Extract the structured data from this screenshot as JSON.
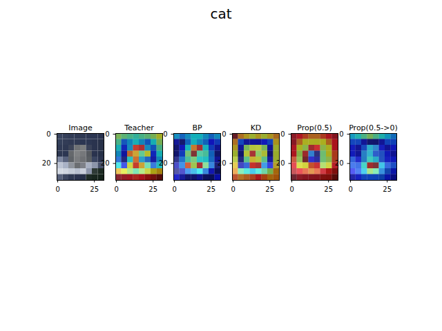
{
  "title": "cat",
  "chart_data": [
    {
      "type": "image",
      "title": "Image",
      "xlim": [
        -0.5,
        31.5
      ],
      "ylim": [
        31.5,
        -0.5
      ],
      "xticks": [
        0,
        25
      ],
      "yticks": [
        0,
        20
      ],
      "cells": [
        [
          "#3a4560",
          "#36405a",
          "#323c56",
          "#2f3953",
          "#2f3953",
          "#2c3652",
          "#2c3652",
          "#2a334e"
        ],
        [
          "#34405a",
          "#323c56",
          "#2f3953",
          "#2f3953",
          "#2c3652",
          "#2c3652",
          "#2a334e",
          "#283149"
        ],
        [
          "#303a55",
          "#2e3852",
          "#3c4458",
          "#6f7275",
          "#7a7c7e",
          "#3a4258",
          "#2a334e",
          "#283149"
        ],
        [
          "#2e3852",
          "#2c3652",
          "#65686c",
          "#808284",
          "#76787b",
          "#55595f",
          "#2a334e",
          "#263048"
        ],
        [
          "#7c86a0",
          "#59637e",
          "#5f6368",
          "#7a7c7f",
          "#6e7074",
          "#5a5e63",
          "#3a4560",
          "#2a334e"
        ],
        [
          "#bcc4d4",
          "#a9b2c6",
          "#8e939c",
          "#6b6e72",
          "#7d8088",
          "#a8b0c2",
          "#8c95aa",
          "#46506a"
        ],
        [
          "#d4dae4",
          "#cfd5e0",
          "#c4cbd8",
          "#b8c0d0",
          "#c9cfdb",
          "#8c95aa",
          "#2e3a36",
          "#1c2a22"
        ],
        [
          "#56607a",
          "#3c4660",
          "#2e3852",
          "#2a334e",
          "#263048",
          "#1e2c26",
          "#18261e",
          "#14221a"
        ]
      ]
    },
    {
      "type": "heatmap",
      "title": "Teacher",
      "xlim": [
        -0.5,
        31.5
      ],
      "ylim": [
        31.5,
        -0.5
      ],
      "xticks": [
        0,
        25
      ],
      "yticks": [
        0,
        20
      ],
      "cells": [
        [
          0.65,
          0.62,
          0.6,
          0.58,
          0.6,
          0.62,
          0.65,
          0.7
        ],
        [
          0.6,
          0.45,
          0.5,
          0.55,
          0.5,
          0.45,
          0.55,
          0.65
        ],
        [
          0.55,
          0.4,
          0.5,
          0.85,
          0.9,
          0.5,
          0.45,
          0.6
        ],
        [
          0.5,
          0.35,
          0.8,
          0.75,
          0.6,
          0.7,
          0.4,
          0.55
        ],
        [
          0.45,
          0.3,
          0.55,
          0.8,
          0.5,
          0.45,
          0.35,
          0.5
        ],
        [
          0.55,
          0.4,
          0.7,
          0.85,
          0.75,
          0.6,
          0.45,
          0.55
        ],
        [
          0.75,
          0.7,
          0.65,
          0.6,
          0.65,
          0.7,
          0.72,
          0.75
        ],
        [
          0.92,
          0.9,
          0.88,
          0.85,
          0.87,
          0.9,
          0.92,
          0.95
        ]
      ]
    },
    {
      "type": "heatmap",
      "title": "BP",
      "xlim": [
        -0.5,
        31.5
      ],
      "ylim": [
        31.5,
        -0.5
      ],
      "xticks": [
        0,
        25
      ],
      "yticks": [
        0,
        20
      ],
      "cells": [
        [
          0.35,
          0.3,
          0.35,
          0.4,
          0.4,
          0.35,
          0.3,
          0.35
        ],
        [
          0.15,
          0.1,
          0.3,
          0.4,
          0.35,
          0.3,
          0.2,
          0.25
        ],
        [
          0.1,
          0.2,
          0.4,
          0.7,
          0.85,
          0.4,
          0.25,
          0.15
        ],
        [
          0.1,
          0.25,
          0.5,
          0.9,
          0.45,
          0.45,
          0.3,
          0.1
        ],
        [
          0.1,
          0.3,
          0.45,
          0.5,
          0.4,
          0.4,
          0.3,
          0.15
        ],
        [
          0.15,
          0.3,
          0.75,
          0.55,
          0.85,
          0.5,
          0.3,
          0.1
        ],
        [
          0.1,
          0.15,
          0.3,
          0.35,
          0.4,
          0.3,
          0.2,
          0.1
        ],
        [
          0.2,
          0.15,
          0.1,
          0.1,
          0.15,
          0.1,
          0.1,
          0.2
        ]
      ]
    },
    {
      "type": "heatmap",
      "title": "KD",
      "xlim": [
        -0.5,
        31.5
      ],
      "ylim": [
        31.5,
        -0.5
      ],
      "xticks": [
        0,
        25
      ],
      "yticks": [
        0,
        20
      ],
      "cells": [
        [
          0.9,
          0.7,
          0.65,
          0.6,
          0.65,
          0.6,
          0.65,
          0.7
        ],
        [
          0.7,
          0.3,
          0.2,
          0.2,
          0.2,
          0.25,
          0.3,
          0.65
        ],
        [
          0.65,
          0.2,
          0.55,
          0.6,
          0.6,
          0.55,
          0.2,
          0.6
        ],
        [
          0.6,
          0.15,
          0.6,
          0.85,
          0.55,
          0.6,
          0.15,
          0.6
        ],
        [
          0.6,
          0.15,
          0.5,
          0.65,
          0.6,
          0.5,
          0.2,
          0.6
        ],
        [
          0.65,
          0.2,
          0.3,
          0.8,
          0.85,
          0.35,
          0.25,
          0.65
        ],
        [
          0.7,
          0.5,
          0.45,
          0.4,
          0.45,
          0.5,
          0.55,
          0.7
        ],
        [
          0.75,
          0.7,
          0.72,
          0.75,
          0.8,
          0.75,
          0.7,
          0.72
        ]
      ]
    },
    {
      "type": "heatmap",
      "title": "Prop(0.5)",
      "xlim": [
        -0.5,
        31.5
      ],
      "ylim": [
        31.5,
        -0.5
      ],
      "xticks": [
        0,
        25
      ],
      "yticks": [
        0,
        20
      ],
      "cells": [
        [
          0.85,
          0.8,
          0.75,
          0.7,
          0.7,
          0.75,
          0.8,
          0.85
        ],
        [
          0.85,
          0.7,
          0.6,
          0.6,
          0.6,
          0.6,
          0.7,
          0.8
        ],
        [
          0.8,
          0.6,
          0.55,
          0.85,
          0.8,
          0.55,
          0.6,
          0.8
        ],
        [
          0.8,
          0.55,
          0.85,
          0.3,
          0.1,
          0.5,
          0.6,
          0.75
        ],
        [
          0.75,
          0.55,
          0.9,
          0.2,
          0.15,
          0.5,
          0.55,
          0.75
        ],
        [
          0.8,
          0.6,
          0.6,
          0.75,
          0.8,
          0.55,
          0.6,
          0.8
        ],
        [
          0.85,
          0.8,
          0.75,
          0.7,
          0.75,
          0.8,
          0.8,
          0.85
        ],
        [
          0.9,
          0.85,
          0.85,
          0.85,
          0.85,
          0.85,
          0.85,
          0.9
        ]
      ]
    },
    {
      "type": "heatmap",
      "title": "Prop(0.5->0)",
      "xlim": [
        -0.5,
        31.5
      ],
      "ylim": [
        31.5,
        -0.5
      ],
      "xticks": [
        0,
        25
      ],
      "yticks": [
        0,
        20
      ],
      "cells": [
        [
          0.4,
          0.45,
          0.5,
          0.55,
          0.5,
          0.45,
          0.4,
          0.35
        ],
        [
          0.3,
          0.3,
          0.2,
          0.15,
          0.15,
          0.2,
          0.3,
          0.3
        ],
        [
          0.25,
          0.2,
          0.3,
          0.4,
          0.35,
          0.25,
          0.2,
          0.25
        ],
        [
          0.25,
          0.2,
          0.35,
          0.4,
          0.3,
          0.3,
          0.25,
          0.2
        ],
        [
          0.3,
          0.25,
          0.35,
          0.45,
          0.4,
          0.3,
          0.25,
          0.25
        ],
        [
          0.3,
          0.3,
          0.45,
          0.85,
          0.9,
          0.4,
          0.3,
          0.3
        ],
        [
          0.25,
          0.3,
          0.4,
          0.55,
          0.5,
          0.35,
          0.3,
          0.25
        ],
        [
          0.2,
          0.25,
          0.3,
          0.3,
          0.3,
          0.3,
          0.25,
          0.2
        ]
      ]
    }
  ]
}
